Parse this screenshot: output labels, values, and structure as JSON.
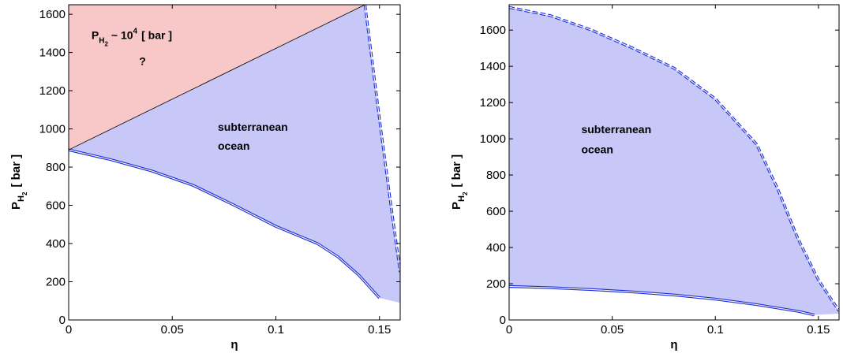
{
  "chart_data": [
    {
      "type": "area",
      "title": "",
      "xlabel": "η",
      "ylabel": {
        "main": "P",
        "sub": "H",
        "subsub": "2",
        "unit": "[ bar ]"
      },
      "xlim": [
        0,
        0.16
      ],
      "ylim": [
        0,
        1650
      ],
      "xticks": [
        0,
        0.05,
        0.1,
        0.15
      ],
      "xtick_labels": [
        "0",
        "0.05",
        "0.1",
        "0.15"
      ],
      "yticks": [
        0,
        200,
        400,
        600,
        800,
        1000,
        1200,
        1400,
        1600
      ],
      "ytick_labels": [
        "0",
        "200",
        "400",
        "600",
        "800",
        "1000",
        "1200",
        "1400",
        "1600"
      ],
      "grid": false,
      "colors": {
        "ocean_fill": "#c8c8f8",
        "red_fill": "#f8c8c8",
        "curve": "#1f2fd8",
        "boundary_line": "#000000"
      },
      "series": [
        {
          "role": "lower_boundary",
          "style": "double-solid",
          "x": [
            0,
            0.02,
            0.04,
            0.06,
            0.08,
            0.1,
            0.12,
            0.13,
            0.14,
            0.15
          ],
          "y": [
            890,
            840,
            780,
            705,
            600,
            490,
            400,
            330,
            235,
            115
          ]
        },
        {
          "role": "upper_boundary",
          "style": "double-dashed",
          "x": [
            0.143,
            0.15,
            0.155,
            0.16
          ],
          "y": [
            1650,
            1050,
            640,
            250
          ]
        },
        {
          "role": "red_region_boundary",
          "style": "thin-solid",
          "x": [
            0,
            0.143
          ],
          "y": [
            890,
            1650
          ]
        }
      ],
      "regions": [
        {
          "name": "red",
          "polygon": [
            [
              0,
              890
            ],
            [
              0,
              1650
            ],
            [
              0.143,
              1650
            ]
          ]
        },
        {
          "name": "ocean",
          "polygon": [
            [
              0,
              890
            ],
            [
              0.143,
              1650
            ],
            [
              0.15,
              1050
            ],
            [
              0.155,
              640
            ],
            [
              0.16,
              250
            ],
            [
              0.16,
              90
            ],
            [
              0.15,
              115
            ],
            [
              0.14,
              235
            ],
            [
              0.13,
              330
            ],
            [
              0.12,
              400
            ],
            [
              0.1,
              490
            ],
            [
              0.08,
              600
            ],
            [
              0.06,
              705
            ],
            [
              0.04,
              780
            ],
            [
              0.02,
              840
            ]
          ]
        }
      ],
      "annotations": [
        {
          "text": "subterranean",
          "x": 0.072,
          "y": 990
        },
        {
          "text": "ocean",
          "x": 0.072,
          "y": 890
        },
        {
          "text": "?",
          "x": 0.034,
          "y": 1335
        }
      ],
      "pressure_note": {
        "p": "P",
        "h": "H",
        "two": "2",
        "tilde": "~ 10",
        "exp": "4",
        "unit": "[ bar ]",
        "x": 0.011,
        "y": 1470
      }
    },
    {
      "type": "area",
      "title": "",
      "xlabel": "η",
      "ylabel": {
        "main": "P",
        "sub": "H",
        "subsub": "2",
        "unit": "[ bar ]"
      },
      "xlim": [
        0,
        0.16
      ],
      "ylim": [
        0,
        1740
      ],
      "xticks": [
        0,
        0.05,
        0.1,
        0.15
      ],
      "xtick_labels": [
        "0",
        "0.05",
        "0.1",
        "0.15"
      ],
      "yticks": [
        0,
        200,
        400,
        600,
        800,
        1000,
        1200,
        1400,
        1600
      ],
      "ytick_labels": [
        "0",
        "200",
        "400",
        "600",
        "800",
        "1000",
        "1200",
        "1400",
        "1600"
      ],
      "grid": false,
      "colors": {
        "ocean_fill": "#c8c8f8",
        "curve": "#1f2fd8"
      },
      "series": [
        {
          "role": "upper_boundary",
          "style": "double-dashed",
          "x": [
            0,
            0.02,
            0.04,
            0.06,
            0.08,
            0.1,
            0.12,
            0.13,
            0.14,
            0.15,
            0.16
          ],
          "y": [
            1725,
            1680,
            1600,
            1500,
            1390,
            1220,
            970,
            730,
            450,
            220,
            50
          ]
        },
        {
          "role": "lower_boundary",
          "style": "double-solid",
          "x": [
            0,
            0.02,
            0.04,
            0.06,
            0.08,
            0.1,
            0.12,
            0.14,
            0.148
          ],
          "y": [
            185,
            178,
            168,
            155,
            138,
            115,
            85,
            48,
            28
          ]
        }
      ],
      "regions": [
        {
          "name": "ocean",
          "polygon": [
            [
              0,
              1725
            ],
            [
              0.02,
              1680
            ],
            [
              0.04,
              1600
            ],
            [
              0.06,
              1500
            ],
            [
              0.08,
              1390
            ],
            [
              0.1,
              1220
            ],
            [
              0.12,
              970
            ],
            [
              0.13,
              730
            ],
            [
              0.14,
              450
            ],
            [
              0.15,
              220
            ],
            [
              0.16,
              50
            ],
            [
              0.16,
              35
            ],
            [
              0.148,
              28
            ],
            [
              0.14,
              48
            ],
            [
              0.12,
              85
            ],
            [
              0.1,
              115
            ],
            [
              0.08,
              138
            ],
            [
              0.06,
              155
            ],
            [
              0.04,
              168
            ],
            [
              0.02,
              178
            ],
            [
              0,
              185
            ]
          ]
        }
      ],
      "annotations": [
        {
          "text": "subterranean",
          "x": 0.035,
          "y": 1030
        },
        {
          "text": "ocean",
          "x": 0.035,
          "y": 920
        }
      ]
    }
  ]
}
